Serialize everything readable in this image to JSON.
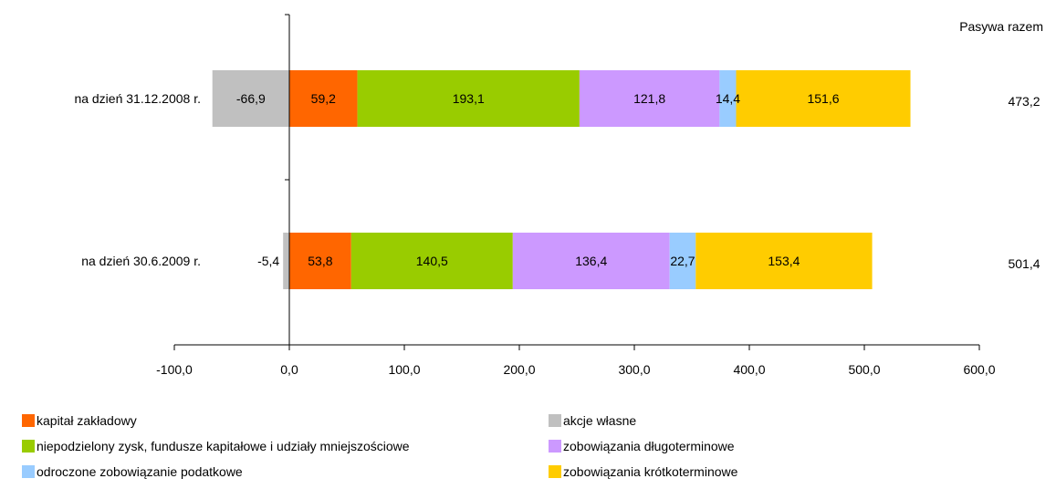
{
  "chart_data": {
    "type": "bar",
    "orientation": "horizontal",
    "stacked": true,
    "title": "",
    "xlabel": "",
    "ylabel": "",
    "xlim": [
      -100,
      600
    ],
    "x_ticks": [
      -100,
      0,
      100,
      200,
      300,
      400,
      500,
      600
    ],
    "x_tick_labels": [
      "-100,0",
      "0,0",
      "100,0",
      "200,0",
      "300,0",
      "400,0",
      "500,0",
      "600,0"
    ],
    "grid": false,
    "legend_position": "bottom",
    "categories": [
      "na dzień 31.12.2008 r.",
      "na dzień 30.6.2009 r."
    ],
    "series": [
      {
        "name": "akcje własne",
        "color": "#c0c0c0",
        "values": [
          -66.9,
          -5.4
        ],
        "labels": [
          "-66,9",
          "-5,4"
        ]
      },
      {
        "name": "kapitał zakładowy",
        "color": "#ff6600",
        "values": [
          59.2,
          53.8
        ],
        "labels": [
          "59,2",
          "53,8"
        ]
      },
      {
        "name": "niepodzielony zysk, fundusze kapitałowe i udziały mniejszościowe",
        "color": "#99cc00",
        "values": [
          193.1,
          140.5
        ],
        "labels": [
          "193,1",
          "140,5"
        ]
      },
      {
        "name": "zobowiązania długoterminowe",
        "color": "#cc99ff",
        "values": [
          121.8,
          136.4
        ],
        "labels": [
          "121,8",
          "136,4"
        ]
      },
      {
        "name": "odroczone zobowiązanie podatkowe",
        "color": "#99ccff",
        "values": [
          14.4,
          22.7
        ],
        "labels": [
          "14,4",
          "22,7"
        ]
      },
      {
        "name": "zobowiązania krótkoterminowe",
        "color": "#ffcc00",
        "values": [
          151.6,
          153.4
        ],
        "labels": [
          "151,6",
          "153,4"
        ]
      }
    ],
    "legend_order": [
      1,
      0,
      2,
      3,
      4,
      5
    ],
    "totals_header": "Pasywa razem",
    "totals": [
      "473,2",
      "501,4"
    ]
  }
}
